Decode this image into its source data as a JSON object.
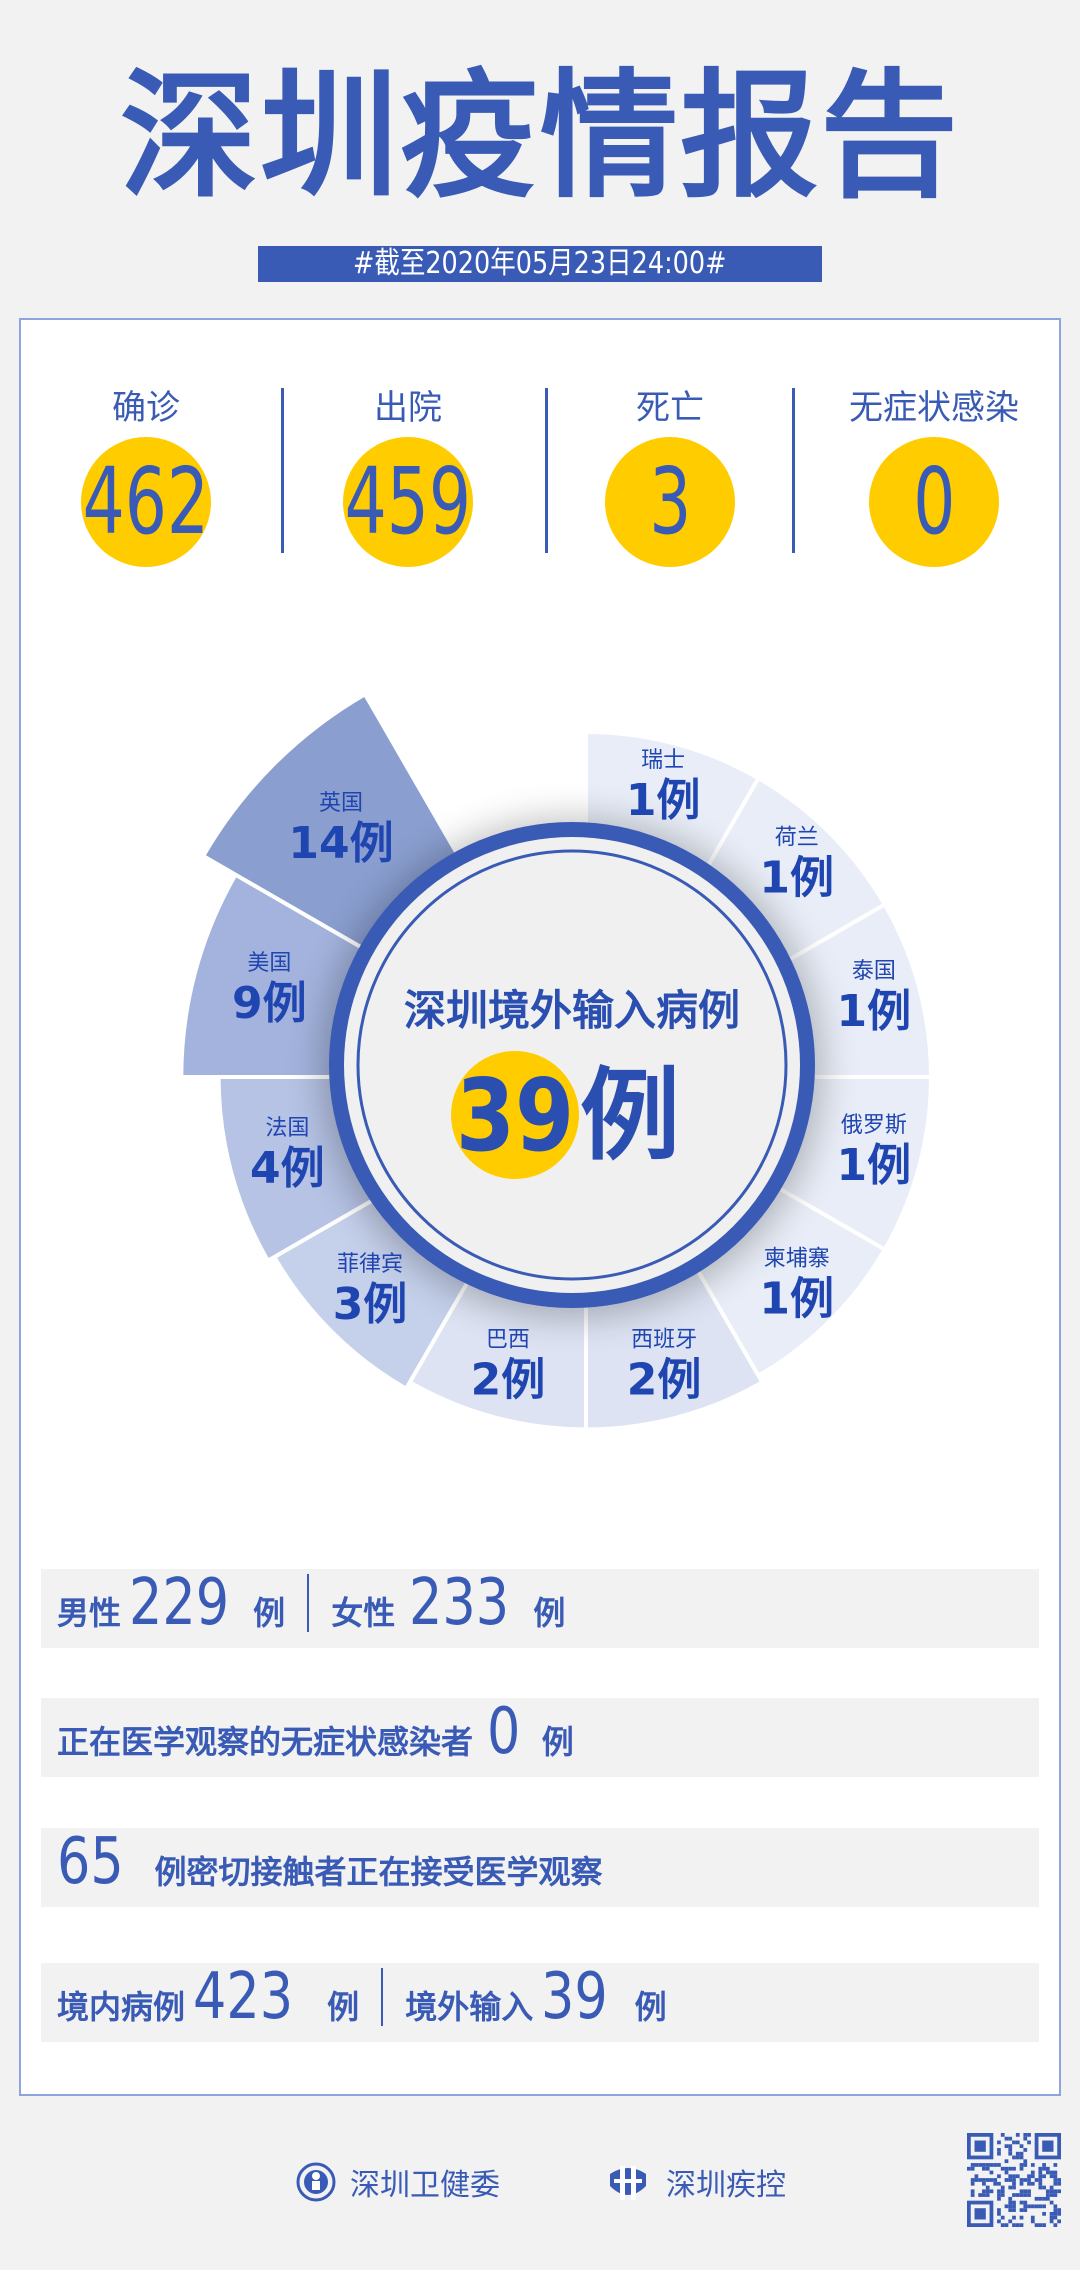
{
  "header": {
    "title": "深圳疫情报告",
    "date": "#截至2020年05月23日24:00#"
  },
  "stats": [
    {
      "label": "确诊",
      "value": "462"
    },
    {
      "label": "出院",
      "value": "459"
    },
    {
      "label": "死亡",
      "value": "3"
    },
    {
      "label": "无症状感染",
      "value": "0"
    }
  ],
  "chart_data": {
    "type": "pie",
    "title": "深圳境外输入病例",
    "total": "39",
    "total_unit": "例",
    "unit": "例",
    "categories": [
      "瑞士",
      "荷兰",
      "泰国",
      "俄罗斯",
      "柬埔寨",
      "西班牙",
      "巴西",
      "菲律宾",
      "法国",
      "美国",
      "英国"
    ],
    "values": [
      1,
      1,
      1,
      1,
      1,
      2,
      2,
      3,
      4,
      9,
      14
    ],
    "colors": [
      "#e8edf7",
      "#e8edf7",
      "#e8edf7",
      "#e8edf7",
      "#e8edf7",
      "#dde3f3",
      "#dde3f3",
      "#c5d0eb",
      "#b6c3e5",
      "#a3b3dd",
      "#8a9fd0"
    ]
  },
  "rows": {
    "gender": {
      "male_label": "男性",
      "male": "229",
      "female_label": "女性",
      "female": "233",
      "unit": "例"
    },
    "asymptomatic": {
      "label": "正在医学观察的无症状感染者",
      "value": "0",
      "unit": "例"
    },
    "contacts": {
      "value": "65",
      "label": "例密切接触者正在接受医学观察"
    },
    "origin": {
      "local_label": "境内病例",
      "local": "423",
      "imported_label": "境外输入",
      "imported": "39",
      "unit": "例"
    }
  },
  "footer": {
    "org1": "深圳卫健委",
    "org2": "深圳疾控"
  },
  "colors": {
    "primary": "#3a5bb5",
    "accent": "#ffcc00",
    "label": "#1f45b0",
    "background": "#f2f2f2"
  }
}
